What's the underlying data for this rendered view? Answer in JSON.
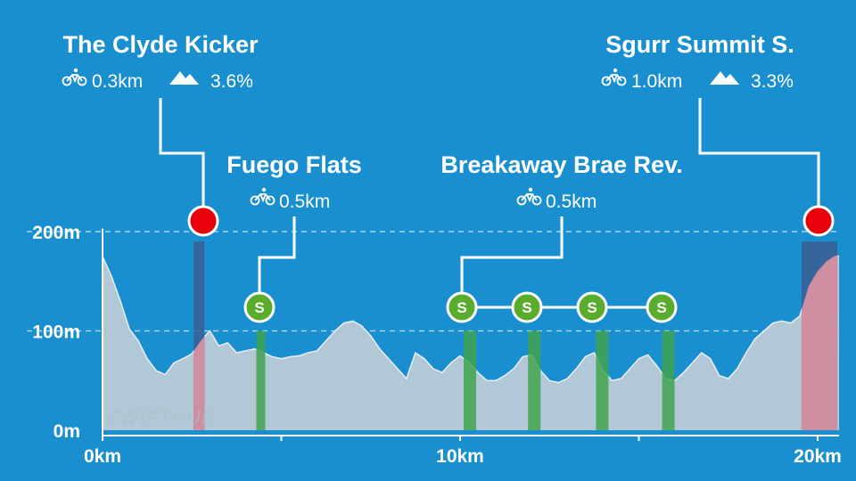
{
  "colors": {
    "background": "#1a8fd0",
    "profile_fill": "#b3c8d6",
    "profile_line": "#e6eef4",
    "climb_band": "#3a5f96",
    "climb_pink": "#cf8fa0",
    "sprint_band": "#3fa34d",
    "sprint_marker": "#5aac2c",
    "kom_marker": "#e8000b",
    "text": "#ffffff"
  },
  "watermark": {
    "text_a": "ZWIFT",
    "text_b": "HUB"
  },
  "chart_data": {
    "type": "area",
    "xlabel": "",
    "ylabel": "",
    "x_unit": "km",
    "y_unit": "m",
    "xlim": [
      0,
      20.6
    ],
    "ylim": [
      0,
      220
    ],
    "grid": "dashed at 100m and 200m",
    "x_ticks": [
      {
        "value": 0,
        "label": "0km"
      },
      {
        "value": 10,
        "label": "10km"
      },
      {
        "value": 20,
        "label": "20km"
      }
    ],
    "x_minor_ticks": [
      5,
      15
    ],
    "y_ticks": [
      {
        "value": 0,
        "label": "0m"
      },
      {
        "value": 100,
        "label": "100m"
      },
      {
        "value": 200,
        "label": "200m"
      }
    ],
    "elevation": {
      "x": [
        0,
        0.25,
        0.5,
        0.75,
        1.0,
        1.25,
        1.5,
        1.75,
        2.0,
        2.25,
        2.5,
        2.75,
        3.0,
        3.25,
        3.5,
        3.75,
        4.0,
        4.25,
        4.5,
        4.75,
        5.0,
        5.25,
        5.5,
        5.75,
        6.0,
        6.25,
        6.5,
        6.75,
        7.0,
        7.25,
        7.5,
        7.75,
        8.0,
        8.25,
        8.5,
        8.75,
        9.0,
        9.25,
        9.5,
        9.75,
        10.0,
        10.25,
        10.5,
        10.75,
        11.0,
        11.25,
        11.5,
        11.75,
        12.0,
        12.25,
        12.5,
        12.75,
        13.0,
        13.25,
        13.5,
        13.75,
        14.0,
        14.25,
        14.5,
        14.75,
        15.0,
        15.25,
        15.5,
        15.75,
        16.0,
        16.25,
        16.5,
        16.75,
        17.0,
        17.25,
        17.5,
        17.75,
        18.0,
        18.25,
        18.5,
        18.75,
        19.0,
        19.25,
        19.5,
        19.75,
        20.0,
        20.25,
        20.5,
        20.6
      ],
      "y": [
        175,
        155,
        130,
        102,
        90,
        72,
        60,
        56,
        68,
        72,
        77,
        90,
        100,
        85,
        88,
        78,
        80,
        82,
        78,
        74,
        72,
        74,
        75,
        78,
        80,
        90,
        100,
        108,
        110,
        105,
        95,
        82,
        72,
        62,
        52,
        78,
        72,
        62,
        58,
        68,
        75,
        68,
        58,
        50,
        50,
        55,
        62,
        74,
        76,
        60,
        50,
        48,
        52,
        62,
        74,
        78,
        60,
        50,
        52,
        62,
        72,
        76,
        65,
        52,
        50,
        58,
        68,
        78,
        72,
        55,
        52,
        62,
        78,
        92,
        100,
        108,
        110,
        108,
        115,
        145,
        160,
        170,
        176,
        175
      ]
    },
    "climbs": [
      {
        "name": "The Clyde Kicker",
        "distance": "0.3km",
        "gradient": "3.6%",
        "start_km": 2.55,
        "end_km": 2.85
      },
      {
        "name": "Sgurr Summit S.",
        "distance": "1.0km",
        "gradient": "3.3%",
        "start_km": 19.55,
        "end_km": 20.55
      }
    ],
    "sprints": [
      {
        "name": "Fuego Flats",
        "distance": "0.5km",
        "start_km": 4.3,
        "end_km": 4.55,
        "marker": "S"
      },
      {
        "name": "Breakaway Brae Rev.",
        "distance": "0.5km",
        "bands_km": [
          10.1,
          11.9,
          13.8,
          15.65
        ],
        "band_width_km": 0.35,
        "marker": "S"
      }
    ]
  }
}
